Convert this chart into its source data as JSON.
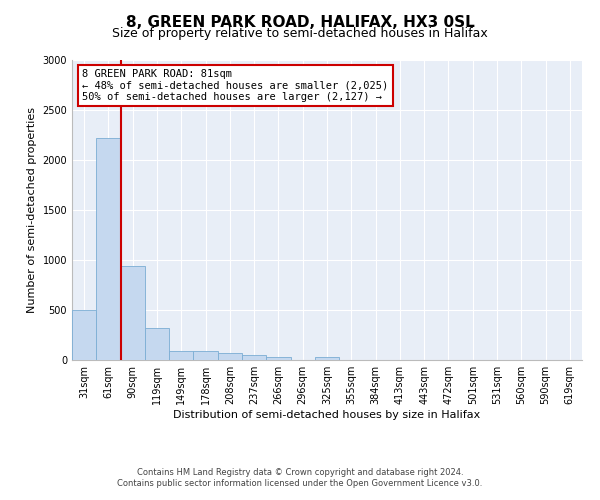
{
  "title": "8, GREEN PARK ROAD, HALIFAX, HX3 0SL",
  "subtitle": "Size of property relative to semi-detached houses in Halifax",
  "xlabel": "Distribution of semi-detached houses by size in Halifax",
  "ylabel": "Number of semi-detached properties",
  "bar_labels": [
    "31sqm",
    "61sqm",
    "90sqm",
    "119sqm",
    "149sqm",
    "178sqm",
    "208sqm",
    "237sqm",
    "266sqm",
    "296sqm",
    "325sqm",
    "355sqm",
    "384sqm",
    "413sqm",
    "443sqm",
    "472sqm",
    "501sqm",
    "531sqm",
    "560sqm",
    "590sqm",
    "619sqm"
  ],
  "bar_heights": [
    500,
    2220,
    940,
    320,
    95,
    90,
    75,
    50,
    30,
    0,
    30,
    0,
    0,
    0,
    0,
    0,
    0,
    0,
    0,
    0,
    0
  ],
  "bar_color": "#c5d8ef",
  "bar_edgecolor": "#7badd4",
  "property_line_color": "#cc0000",
  "annotation_title": "8 GREEN PARK ROAD: 81sqm",
  "annotation_line1": "← 48% of semi-detached houses are smaller (2,025)",
  "annotation_line2": "50% of semi-detached houses are larger (2,127) →",
  "annotation_box_edgecolor": "#cc0000",
  "ylim": [
    0,
    3000
  ],
  "yticks": [
    0,
    500,
    1000,
    1500,
    2000,
    2500,
    3000
  ],
  "footnote1": "Contains HM Land Registry data © Crown copyright and database right 2024.",
  "footnote2": "Contains public sector information licensed under the Open Government Licence v3.0.",
  "plot_bg_color": "#e8eef7",
  "fig_bg_color": "#ffffff",
  "grid_color": "#ffffff",
  "title_fontsize": 11,
  "subtitle_fontsize": 9,
  "axis_label_fontsize": 8,
  "tick_fontsize": 7,
  "annotation_fontsize": 7.5,
  "footnote_fontsize": 6
}
